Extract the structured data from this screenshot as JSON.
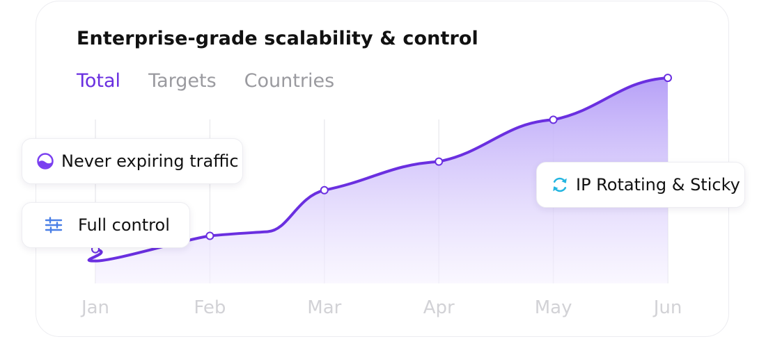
{
  "title": "Enterprise-grade scalability & control",
  "tabs": [
    {
      "label": "Total",
      "active": true
    },
    {
      "label": "Targets",
      "active": false
    },
    {
      "label": "Countries",
      "active": false
    }
  ],
  "features": {
    "never_expiring": {
      "label": "Never expiring traffic",
      "icon": "half-filled-circle-icon"
    },
    "full_control": {
      "label": "Full control",
      "icon": "sliders-icon"
    },
    "ip_rotating": {
      "label": "IP Rotating & Sticky",
      "icon": "refresh-arrows-icon"
    }
  },
  "colors": {
    "accent": "#6a2fe0",
    "area_top": "#b39cf7",
    "area_bottom": "#f6f2ff",
    "gridline": "#ececef",
    "blue_icon": "#4a7fe6",
    "cyan_icon": "#23b5e0"
  },
  "chart_data": {
    "type": "area",
    "categories": [
      "Jan",
      "Feb",
      "Mar",
      "Apr",
      "May",
      "Jun"
    ],
    "values": [
      18,
      25,
      49,
      64,
      86,
      108
    ],
    "grid": "vertical",
    "legend": "none"
  }
}
